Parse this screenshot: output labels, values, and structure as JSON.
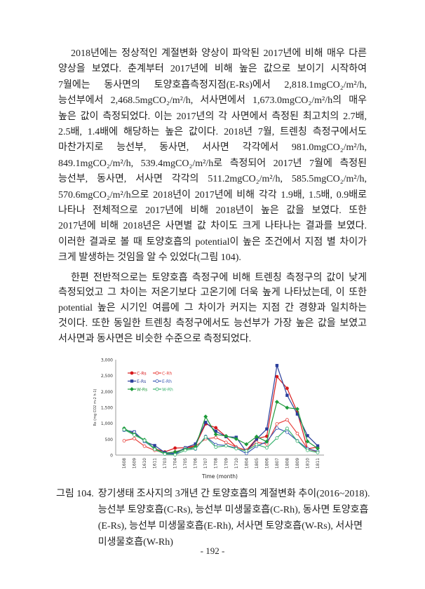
{
  "paragraphs": [
    "2018년에는 정상적인 계절변화 양상이 파악된 2017년에 비해 매우 다른 양상을 보였다. 춘계부터 2017년에 비해 높은 값으로 보이기 시작하여 7월에는 동사면의 토양호흡측정지점(E-Rs)에서 2,818.1mgCO₂/m²/h, 능선부에서 2,468.5mgCO₂/m²/h, 서사면에서 1,673.0mgCO₂/m²/h의 매우 높은 값이 측정되었다. 이는 2017년의 각 사면에서 측정된 최고치의 2.7배, 2.5배, 1.4배에 해당하는 높은 값이다. 2018년 7월, 트렌칭 측정구에서도 마찬가지로 능선부, 동사면, 서사면 각각에서 981.0mgCO₂/m²/h, 849.1mgCO₂/m²/h, 539.4mgCO₂/m²/h로 측정되어 2017년 7월에 측정된 능선부, 동사면, 서사면 각각의 511.2mgCO₂/m²/h, 585.5mgCO₂/m²/h, 570.6mgCO₂/m²/h으로 2018년이 2017년에 비해 각각 1.9배, 1.5배, 0.9배로 나타나 전체적으로 2017년에 비해 2018년이 높은 값을 보였다. 또한 2017년에 비해 2018년은 사면별 값 차이도 크게 나타나는 결과를 보였다. 이러한 결과로 볼 때 토양호흡의 potential이 높은 조건에서 지점 별 차이가 크게 발생하는 것임을 알 수 있었다(그림 104).",
    "한편 전반적으로는 토양호흡 측정구에 비해 트렌칭 측정구의 값이 낮게 측정되었고 그 차이는 저온기보다 고온기에 더욱 높게 나타났는데, 이 또한 potential 높은 시기인 여름에 그 차이가 커지는 지점 간 경향과 일치하는 것이다. 또한 동일한 트렌칭 측정구에서도 능선부가 가장 높은 값을 보였고 서사면과 동사면은 비슷한 수준으로 측정되었다."
  ],
  "caption": {
    "label": "그림 104.",
    "text": "장기생태 조사지의 3개년 간 토양호흡의 계절변화 추이(2016~2018). 능선부 토양호흡(C-Rs), 능선부 미생물호흡(C-Rh), 동사면 토양호흡(E-Rs), 능선부 미생물호흡(E-Rh), 서사면 토양호흡(W-Rs), 서사면 미생물호흡(W-Rh)"
  },
  "page_number": "- 192 -",
  "chart_data": {
    "type": "line",
    "xlabel": "Time (month)",
    "ylabel": "Rs (mg CO2 m-2 h-1)",
    "ylim": [
      0,
      3000
    ],
    "yticks": [
      "0",
      "500",
      "1,000",
      "1,500",
      "2,000",
      "2,500",
      "3,000"
    ],
    "ytick_values": [
      0,
      500,
      1000,
      1500,
      2000,
      2500,
      3000
    ],
    "legend_position": "top-left",
    "categories": [
      "1608",
      "1609",
      "1610",
      "1611",
      "1703",
      "1704",
      "1705",
      "1706",
      "1707",
      "1708",
      "1709",
      "1710",
      "1804",
      "1805",
      "1806",
      "1807",
      "1808",
      "1809",
      "1810",
      "1811"
    ],
    "series": [
      {
        "name": "C-Rs",
        "color": "#d7191c",
        "filled": true,
        "marker": "circle",
        "values": [
          800,
          700,
          450,
          200,
          100,
          220,
          230,
          300,
          981,
          860,
          580,
          250,
          150,
          520,
          590,
          2468.5,
          2100,
          1350,
          200,
          250
        ]
      },
      {
        "name": "C-Rh",
        "color": "#e8413c",
        "filled": false,
        "marker": "circle",
        "values": [
          450,
          520,
          280,
          150,
          60,
          100,
          200,
          280,
          511.2,
          550,
          400,
          250,
          150,
          400,
          350,
          981,
          1110,
          680,
          200,
          100
        ]
      },
      {
        "name": "E-Rs",
        "color": "#2b3f9b",
        "filled": true,
        "marker": "square",
        "values": [
          790,
          730,
          430,
          300,
          80,
          50,
          230,
          350,
          1030,
          750,
          580,
          560,
          100,
          500,
          820,
          2818.1,
          1880,
          1290,
          610,
          290
        ]
      },
      {
        "name": "E-Rh",
        "color": "#3a5bb5",
        "filled": false,
        "marker": "circle",
        "values": [
          780,
          720,
          430,
          200,
          50,
          30,
          220,
          190,
          585.5,
          330,
          300,
          220,
          50,
          280,
          420,
          849.1,
          720,
          450,
          200,
          120
        ]
      },
      {
        "name": "W-Rs",
        "color": "#1e9a3a",
        "filled": true,
        "marker": "diamond",
        "values": [
          840,
          650,
          480,
          200,
          50,
          100,
          180,
          260,
          1210,
          650,
          600,
          510,
          340,
          580,
          420,
          1673,
          1490,
          1450,
          430,
          210
        ]
      },
      {
        "name": "W-Rh",
        "color": "#3cb371",
        "filled": false,
        "marker": "circle",
        "values": [
          800,
          630,
          460,
          180,
          30,
          10,
          150,
          200,
          570.6,
          250,
          290,
          200,
          130,
          330,
          230,
          539.4,
          840,
          440,
          150,
          80
        ]
      }
    ]
  }
}
